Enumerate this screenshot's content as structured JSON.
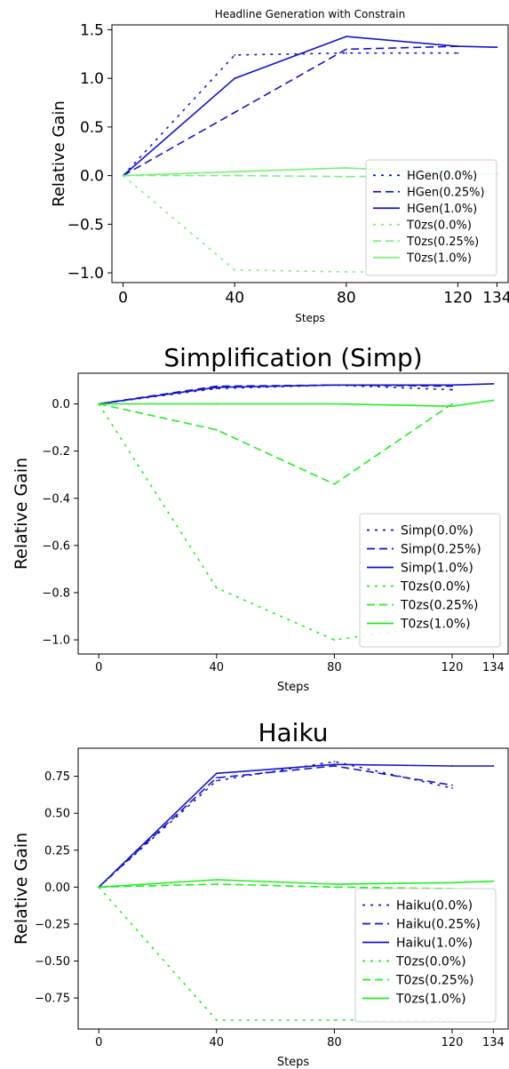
{
  "chart_data": [
    {
      "type": "line",
      "title": "Headline Generation with Constrain",
      "xlabel": "Steps",
      "ylabel": "Relative Gain",
      "x_ticks": [
        0,
        40,
        80,
        120,
        134
      ],
      "y_ticks": [
        1.5,
        1.0,
        0.5,
        0.0,
        -0.5,
        -1.0
      ],
      "y_tick_labels": [
        "1.5",
        "1.0",
        "0.5",
        "0.0",
        "−0.5",
        "−1.0"
      ],
      "xlim": [
        -4,
        138
      ],
      "ylim": [
        -1.1,
        1.55
      ],
      "legend_position": "lower-right",
      "series": [
        {
          "name": "HGen(0.0%)",
          "color": "#1515cc",
          "style": "dotted",
          "x": [
            0,
            40,
            80,
            120
          ],
          "y": [
            0.0,
            1.24,
            1.26,
            1.26
          ]
        },
        {
          "name": "HGen(0.25%)",
          "color": "#1515cc",
          "style": "dashed",
          "x": [
            0,
            40,
            80,
            120
          ],
          "y": [
            0.0,
            0.65,
            1.3,
            1.33
          ]
        },
        {
          "name": "HGen(1.0%)",
          "color": "#1515cc",
          "style": "solid",
          "x": [
            0,
            40,
            80,
            120,
            134
          ],
          "y": [
            0.0,
            1.0,
            1.43,
            1.33,
            1.32
          ]
        },
        {
          "name": "T0zs(0.0%)",
          "color": "#7cf07c",
          "style": "dotted",
          "x": [
            0,
            40,
            80,
            120
          ],
          "y": [
            0.0,
            -0.97,
            -0.99,
            -0.99
          ]
        },
        {
          "name": "T0zs(0.25%)",
          "color": "#7cf07c",
          "style": "dashed",
          "x": [
            0,
            40,
            80,
            120
          ],
          "y": [
            0.0,
            0.0,
            -0.01,
            0.0
          ]
        },
        {
          "name": "T0zs(1.0%)",
          "color": "#7cf07c",
          "style": "solid",
          "x": [
            0,
            40,
            80,
            120,
            134
          ],
          "y": [
            0.0,
            0.04,
            0.08,
            0.02,
            0.02
          ]
        }
      ]
    },
    {
      "type": "line",
      "title": "Simplification (Simp)",
      "xlabel": "Steps",
      "ylabel": "Relative Gain",
      "x_ticks": [
        0,
        40,
        80,
        120,
        134
      ],
      "y_ticks": [
        0.0,
        -0.2,
        -0.4,
        -0.6,
        -0.8,
        -1.0
      ],
      "y_tick_labels": [
        "0.0",
        "−0.2",
        "−0.4",
        "−0.6",
        "−0.8",
        "−1.0"
      ],
      "xlim": [
        -7,
        139
      ],
      "ylim": [
        -1.06,
        0.13
      ],
      "legend_position": "lower-right",
      "series": [
        {
          "name": "Simp(0.0%)",
          "color": "#1515cc",
          "style": "dotted",
          "x": [
            0,
            40,
            80,
            120
          ],
          "y": [
            0.0,
            0.065,
            0.08,
            0.06
          ]
        },
        {
          "name": "Simp(0.25%)",
          "color": "#1515cc",
          "style": "dashed",
          "x": [
            0,
            40,
            80,
            120
          ],
          "y": [
            0.0,
            0.075,
            0.08,
            0.075
          ]
        },
        {
          "name": "Simp(1.0%)",
          "color": "#1515cc",
          "style": "solid",
          "x": [
            0,
            40,
            80,
            120,
            134
          ],
          "y": [
            0.0,
            0.07,
            0.08,
            0.08,
            0.085
          ]
        },
        {
          "name": "T0zs(0.0%)",
          "color": "#22ee22",
          "style": "dotted",
          "x": [
            0,
            40,
            80,
            120
          ],
          "y": [
            0.0,
            -0.78,
            -1.0,
            -0.93
          ]
        },
        {
          "name": "T0zs(0.25%)",
          "color": "#22ee22",
          "style": "dashed",
          "x": [
            0,
            40,
            80,
            120
          ],
          "y": [
            0.0,
            -0.11,
            -0.34,
            0.0
          ]
        },
        {
          "name": "T0zs(1.0%)",
          "color": "#22ee22",
          "style": "solid",
          "x": [
            0,
            40,
            80,
            120,
            134
          ],
          "y": [
            0.0,
            0.0,
            0.0,
            -0.01,
            0.015
          ]
        }
      ]
    },
    {
      "type": "line",
      "title": "Haiku",
      "xlabel": "Steps",
      "ylabel": "Relative Gain",
      "x_ticks": [
        0,
        40,
        80,
        120,
        134
      ],
      "y_ticks": [
        0.75,
        0.5,
        0.25,
        0.0,
        -0.25,
        -0.5,
        -0.75
      ],
      "y_tick_labels": [
        "0.75",
        "0.50",
        "0.25",
        "0.00",
        "−0.25",
        "−0.50",
        "−0.75"
      ],
      "xlim": [
        -7,
        139
      ],
      "ylim": [
        -0.96,
        0.94
      ],
      "legend_position": "lower-right",
      "series": [
        {
          "name": "Haiku(0.0%)",
          "color": "#1515cc",
          "style": "dotted",
          "x": [
            0,
            40,
            80,
            120
          ],
          "y": [
            0.0,
            0.72,
            0.85,
            0.67
          ]
        },
        {
          "name": "Haiku(0.25%)",
          "color": "#1515cc",
          "style": "dashed",
          "x": [
            0,
            40,
            80,
            120
          ],
          "y": [
            0.0,
            0.74,
            0.82,
            0.69
          ]
        },
        {
          "name": "Haiku(1.0%)",
          "color": "#1515cc",
          "style": "solid",
          "x": [
            0,
            40,
            80,
            120,
            134
          ],
          "y": [
            0.0,
            0.77,
            0.83,
            0.82,
            0.82
          ]
        },
        {
          "name": "T0zs(0.0%)",
          "color": "#22ee22",
          "style": "dotted",
          "x": [
            0,
            40,
            80,
            120
          ],
          "y": [
            0.0,
            -0.9,
            -0.9,
            -0.89
          ]
        },
        {
          "name": "T0zs(0.25%)",
          "color": "#22ee22",
          "style": "dashed",
          "x": [
            0,
            40,
            80,
            120
          ],
          "y": [
            0.0,
            0.02,
            0.0,
            -0.01
          ]
        },
        {
          "name": "T0zs(1.0%)",
          "color": "#22ee22",
          "style": "solid",
          "x": [
            0,
            40,
            80,
            120,
            134
          ],
          "y": [
            0.0,
            0.05,
            0.02,
            0.03,
            0.04
          ]
        }
      ]
    }
  ]
}
